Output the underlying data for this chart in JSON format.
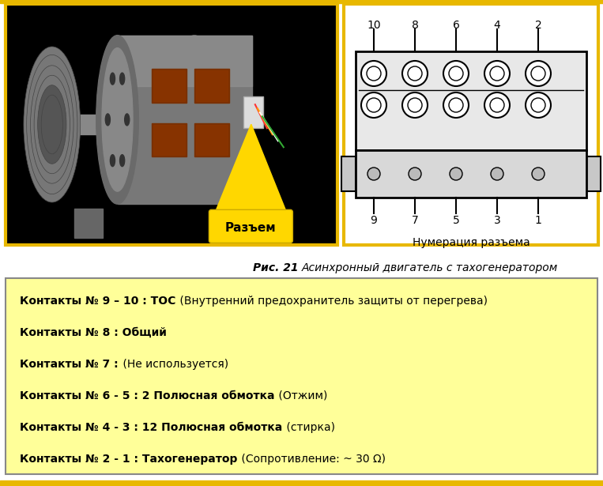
{
  "bg_color": "#ffffff",
  "yellow_border": "#e8b800",
  "fig_caption_bold": "Рис. 21 ",
  "fig_caption_italic": "Асинхронный двигатель с тахогенератором",
  "info_box_bg": "#ffff99",
  "info_box_border": "#888888",
  "info_lines": [
    {
      "bold_part": "Контакты № 9 – 10 : ТОС",
      "normal_part": " (Внутренний предохранитель защиты от перегрева)"
    },
    {
      "bold_part": "Контакты № 8 : Общий",
      "normal_part": ""
    },
    {
      "bold_part": "Контакты № 7 :",
      "normal_part": " (Не используется)"
    },
    {
      "bold_part": "Контакты № 6 - 5 : 2 Полюсная обмотка",
      "normal_part": " (Отжим)"
    },
    {
      "bold_part": "Контакты № 4 - 3 : 12 Полюсная обмотка",
      "normal_part": " (стирка)"
    },
    {
      "bold_part": "Контакты № 2 - 1 : Тахогенератор",
      "normal_part": " (Сопротивление: ~ 30 Ω)"
    }
  ],
  "connector_label": "Разъем",
  "numbering_label": "Нумерация разъема",
  "top_nums": [
    "10",
    "8",
    "6",
    "4",
    "2"
  ],
  "bot_nums": [
    "9",
    "7",
    "5",
    "3",
    "1"
  ],
  "page_bg": "#f0f0f0"
}
